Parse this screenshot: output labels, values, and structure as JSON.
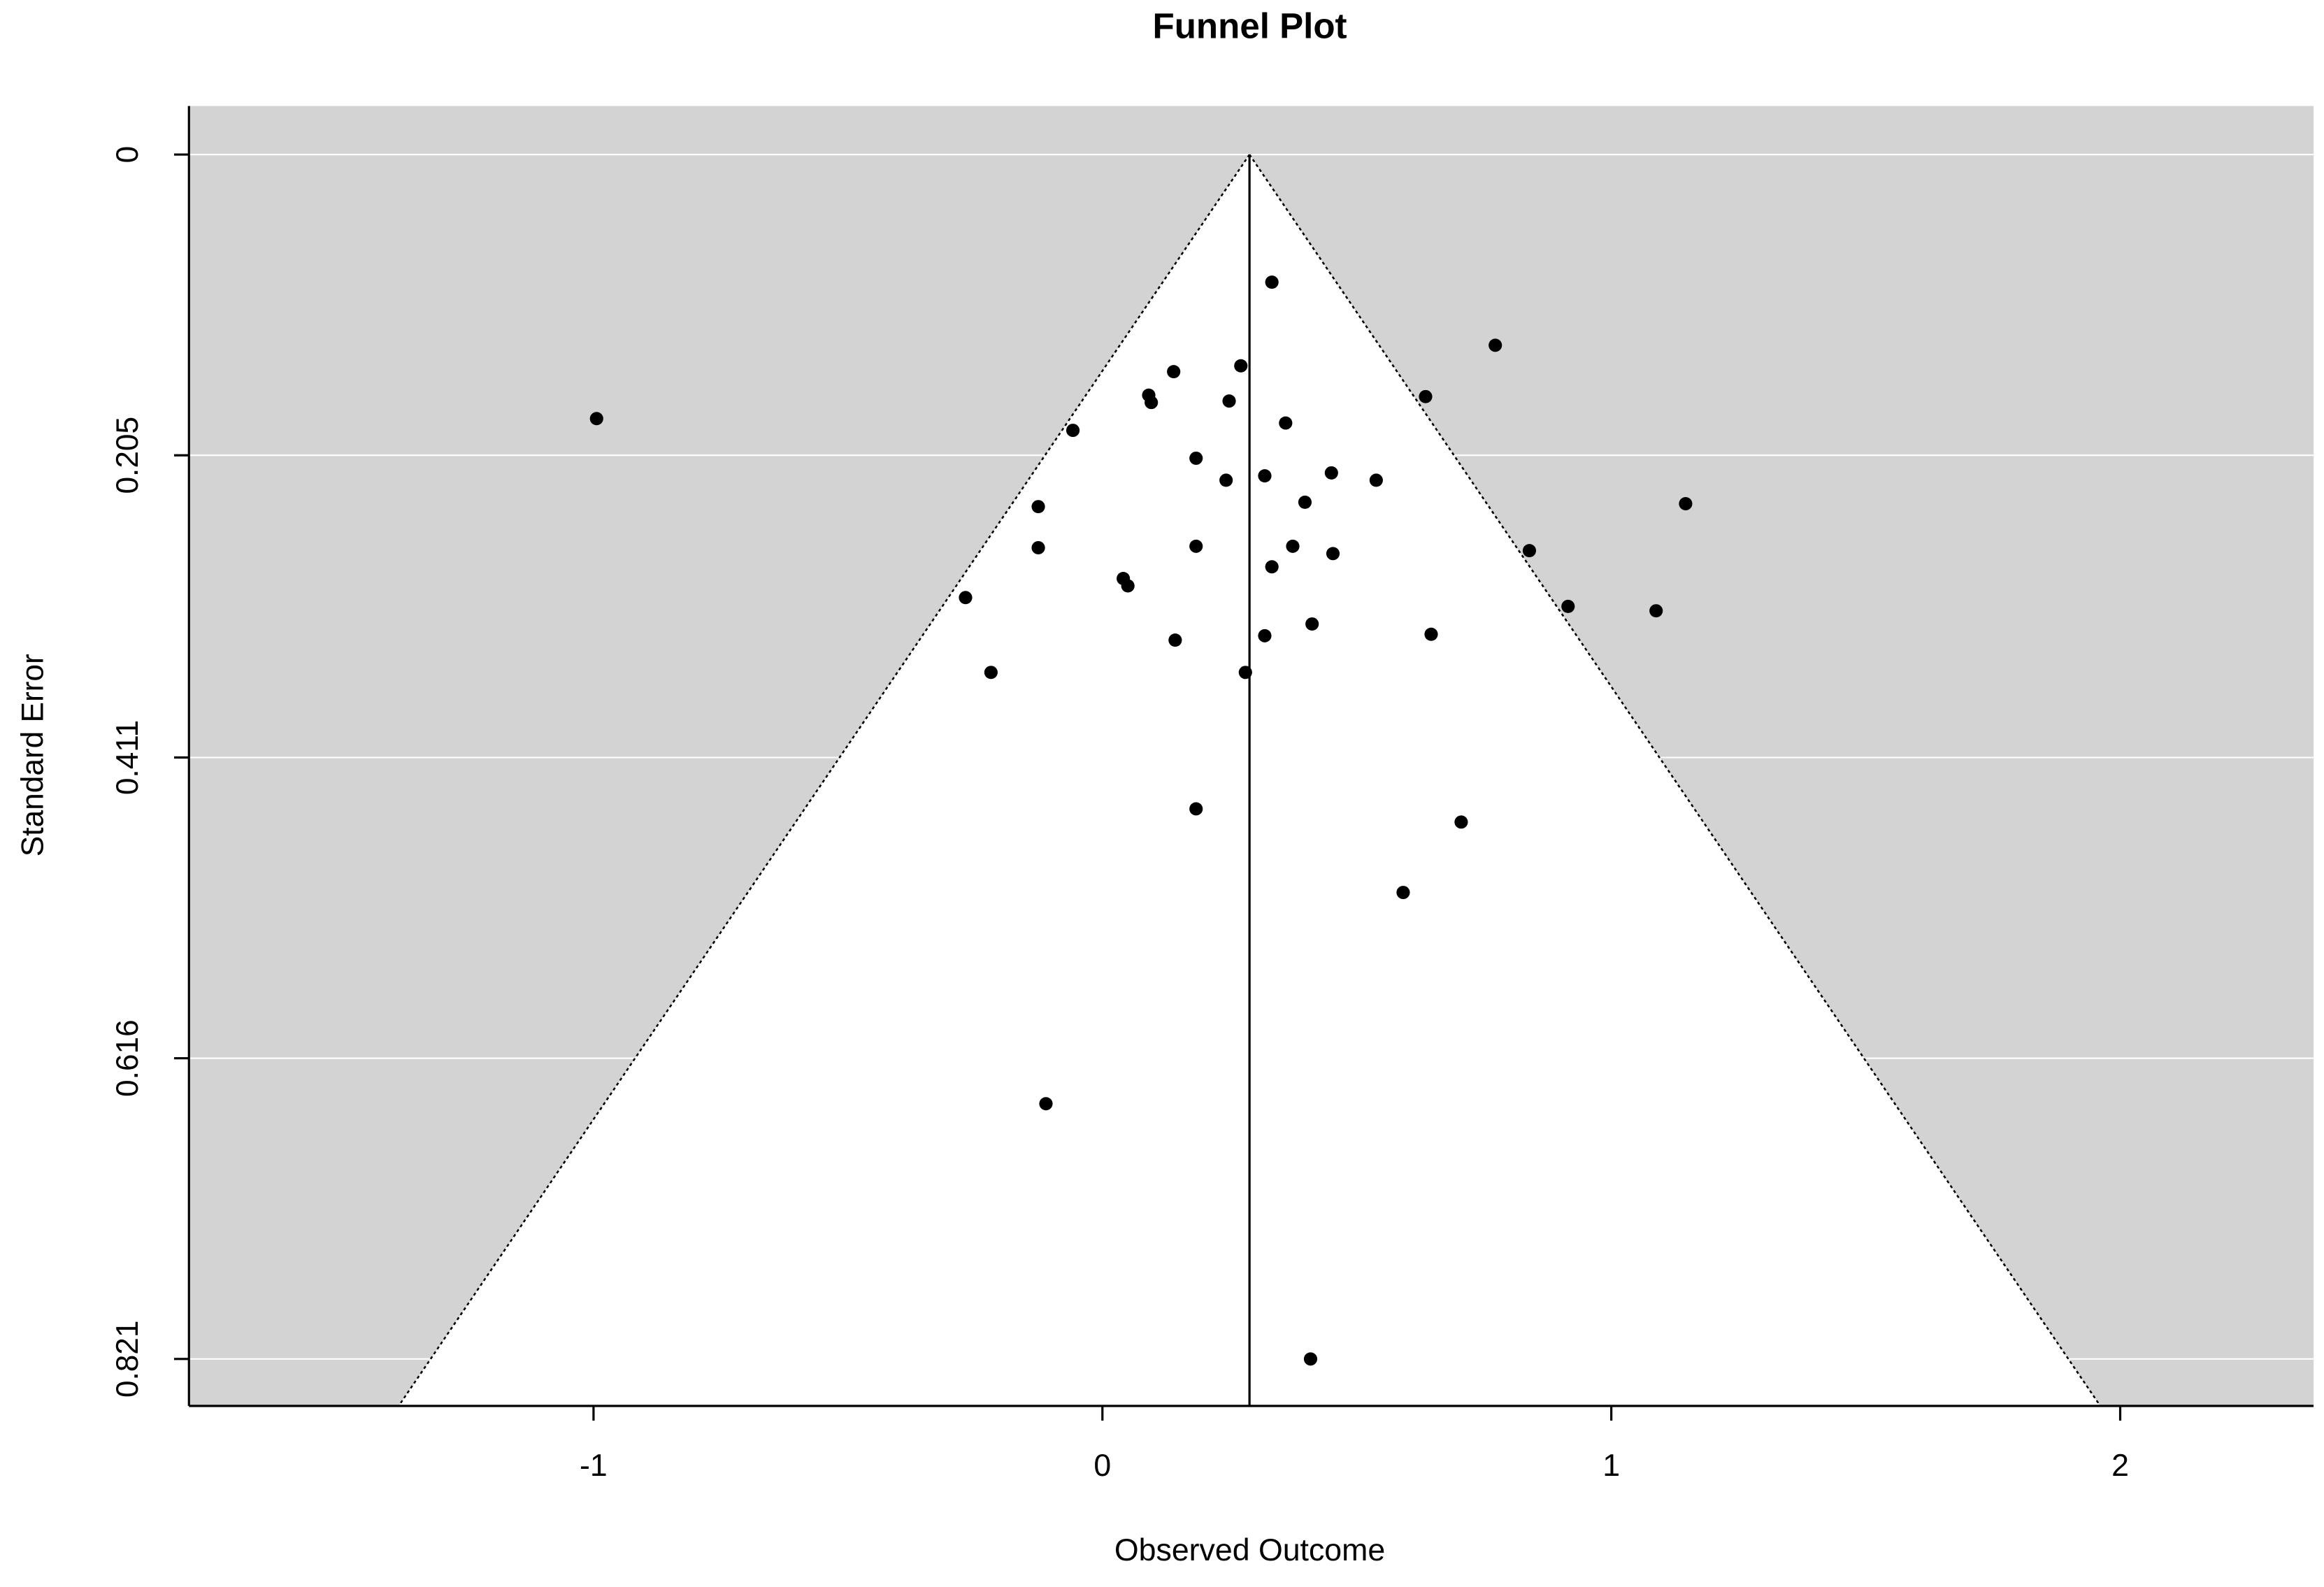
{
  "chart_data": {
    "type": "scatter",
    "title": "Funnel Plot",
    "x_label": "Observed Outcome",
    "y_label": "Standard Error",
    "xlim": [
      -1.795,
      2.38
    ],
    "ylim": [
      -0.0331,
      0.853
    ],
    "y_inverted": true,
    "xticks": [
      -1,
      0,
      1,
      2
    ],
    "yticks": [
      0,
      0.205,
      0.411,
      0.616,
      0.821
    ],
    "grid": true,
    "background": "#d3d3d3",
    "color": "#000000",
    "funnel": {
      "center": 0.289,
      "z": 1.96
    },
    "x": [
      0.333,
      0.772,
      -0.994,
      0.14,
      0.272,
      0.091,
      0.096,
      0.249,
      0.635,
      0.36,
      -0.058,
      0.184,
      0.319,
      0.243,
      0.45,
      0.538,
      0.398,
      -0.126,
      1.146,
      -0.126,
      0.184,
      0.374,
      0.453,
      0.333,
      0.839,
      0.041,
      0.05,
      -0.269,
      0.915,
      1.088,
      0.412,
      0.319,
      0.646,
      0.143,
      -0.219,
      0.281,
      0.184,
      0.705,
      0.591,
      -0.111,
      0.409
    ],
    "values": [
      0.087,
      0.13,
      0.18,
      0.148,
      0.144,
      0.164,
      0.169,
      0.168,
      0.165,
      0.183,
      0.188,
      0.207,
      0.219,
      0.222,
      0.217,
      0.222,
      0.237,
      0.24,
      0.238,
      0.268,
      0.267,
      0.267,
      0.272,
      0.281,
      0.27,
      0.289,
      0.294,
      0.302,
      0.308,
      0.311,
      0.32,
      0.328,
      0.327,
      0.331,
      0.353,
      0.353,
      0.446,
      0.455,
      0.503,
      0.647,
      0.821
    ]
  }
}
